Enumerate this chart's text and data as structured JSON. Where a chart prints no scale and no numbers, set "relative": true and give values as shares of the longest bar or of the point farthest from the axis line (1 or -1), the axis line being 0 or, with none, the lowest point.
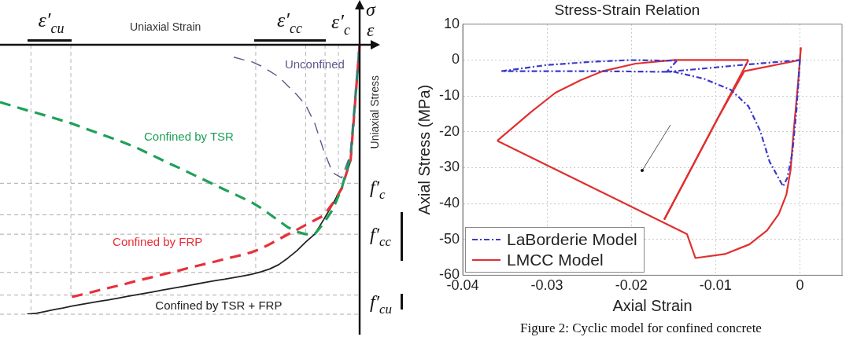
{
  "chart_data": [
    {
      "type": "line",
      "relative": true,
      "xlabel": "Uniaxial Strain",
      "ylabel": "Uniaxial Stress",
      "marker": "none",
      "legend": false,
      "categories": [
        null,
        null,
        null,
        null,
        null,
        null,
        null,
        null,
        null,
        null,
        null,
        null,
        null,
        null,
        null,
        null,
        null,
        null,
        null,
        null,
        null,
        null,
        null,
        null,
        null,
        null,
        null,
        null,
        null,
        null,
        null,
        null,
        null,
        null,
        null,
        null,
        null,
        null,
        null,
        null,
        null
      ],
      "series": [
        {
          "name": "Unconfined",
          "color": "#5a5a8c",
          "line_style": "dashed",
          "values": [
            null,
            null,
            null,
            null,
            null,
            null,
            null,
            null,
            null,
            null,
            null,
            null,
            null,
            null,
            null,
            null,
            null,
            null,
            null,
            null,
            null,
            null,
            null,
            null,
            null,
            null,
            -0.046,
            -0.055,
            -0.063,
            -0.078,
            -0.098,
            -0.119,
            -0.152,
            -0.185,
            -0.224,
            -0.291,
            -0.392,
            -0.475,
            -0.494,
            -0.404,
            0
          ]
        },
        {
          "name": "Confined by TSR",
          "color": "#1fa05a",
          "line_style": "dashed",
          "values": [
            -0.213,
            -0.223,
            -0.233,
            -0.243,
            -0.252,
            -0.262,
            -0.272,
            -0.282,
            -0.292,
            -0.305,
            -0.317,
            -0.329,
            -0.341,
            -0.353,
            -0.366,
            -0.379,
            -0.395,
            -0.411,
            -0.427,
            -0.443,
            -0.458,
            -0.474,
            -0.49,
            -0.506,
            -0.522,
            -0.538,
            -0.553,
            -0.569,
            -0.585,
            -0.605,
            -0.629,
            -0.653,
            -0.677,
            -0.694,
            -0.703,
            -0.703,
            -0.662,
            -0.612,
            -0.533,
            -0.411,
            0
          ]
        },
        {
          "name": "Confined by FRP",
          "color": "#e8303a",
          "line_style": "dashed",
          "values": [
            null,
            null,
            null,
            null,
            null,
            null,
            null,
            null,
            -0.936,
            -0.928,
            -0.92,
            -0.911,
            -0.903,
            -0.895,
            -0.887,
            -0.878,
            -0.87,
            -0.862,
            -0.853,
            -0.845,
            -0.837,
            -0.828,
            -0.82,
            -0.812,
            -0.804,
            -0.795,
            -0.787,
            -0.779,
            -0.77,
            -0.757,
            -0.74,
            -0.722,
            -0.704,
            -0.687,
            -0.669,
            -0.651,
            -0.634,
            -0.589,
            -0.534,
            -0.426,
            0
          ]
        },
        {
          "name": "Confined by TSR + FRP",
          "color": "#222222",
          "line_style": "solid",
          "values": [
            null,
            null,
            null,
            -1,
            -0.997,
            -0.99,
            -0.983,
            -0.977,
            -0.97,
            -0.964,
            -0.958,
            -0.952,
            -0.947,
            -0.941,
            -0.935,
            -0.929,
            -0.923,
            -0.917,
            -0.911,
            -0.905,
            -0.899,
            -0.893,
            -0.887,
            -0.881,
            -0.875,
            -0.87,
            -0.864,
            -0.858,
            -0.852,
            -0.843,
            -0.832,
            -0.816,
            -0.792,
            -0.765,
            -0.732,
            -0.703,
            -0.649,
            -0.592,
            -0.53,
            -0.431,
            0
          ]
        }
      ],
      "ref_lines": [
        {
          "axis": "y",
          "value": -0.514,
          "color": "#aaaaaa",
          "line_style": "dashed"
        },
        {
          "axis": "y",
          "value": -0.631,
          "color": "#aaaaaa",
          "line_style": "dashed"
        },
        {
          "axis": "y",
          "value": -0.703,
          "color": "#aaaaaa",
          "line_style": "dashed"
        },
        {
          "axis": "y",
          "value": -0.845,
          "color": "#aaaaaa",
          "line_style": "dashed"
        },
        {
          "axis": "y",
          "value": -0.929,
          "color": "#aaaaaa",
          "line_style": "dashed"
        },
        {
          "axis": "y",
          "value": -1,
          "color": "#aaaaaa",
          "line_style": "dashed"
        }
      ],
      "annotations": [
        "ε′$_{cu}$",
        "ε′$_{cc}$",
        "ε′$_{c}$",
        "σ",
        "ε",
        "f′$_{c}$",
        "f′$_{cc}$",
        "f′$_{cu}$"
      ]
    },
    {
      "type": "line",
      "title": "Stress-Strain Relation",
      "xlabel": "Axial Strain",
      "ylabel": "Axial Stress (MPa)",
      "marker": "none",
      "grid": true,
      "legend": "bottom left",
      "xlim": [
        -0.04,
        0.005
      ],
      "xticks": [
        -0.04,
        -0.03,
        -0.02,
        -0.01,
        0
      ],
      "ylim": [
        -60,
        10
      ],
      "yticks": [
        -60,
        -50,
        -40,
        -30,
        -20,
        -10,
        0,
        10
      ],
      "series": [
        {
          "name": "LaBorderie Model",
          "color": "#3a3acc",
          "line_style": "dashed",
          "x": [
            0,
            -0.0004,
            -0.0009,
            -0.0015,
            -0.002,
            -0.0036,
            -0.0047,
            -0.0061,
            -0.0082,
            -0.0114,
            -0.0149,
            -0.0241,
            -0.0354
          ],
          "values": [
            0,
            -13.8,
            -26,
            -32.9,
            -35.2,
            -28.3,
            -19.8,
            -12.9,
            -8.3,
            -5.2,
            -3.3,
            -3.1,
            -3.1
          ]
        },
        {
          "color": "#3a3acc",
          "line_style": "dashed",
          "x": [
            -0.0354,
            -0.0301,
            -0.0248,
            -0.0202,
            -0.0146
          ],
          "values": [
            -3.1,
            -1.4,
            -0.5,
            0,
            -0.2
          ]
        },
        {
          "color": "#3a3acc",
          "line_style": "dashed",
          "x": [
            -0.0146,
            -0.0158
          ],
          "values": [
            -0.2,
            -3.3
          ]
        },
        {
          "color": "#3a3acc",
          "line_style": "dashed",
          "x": [
            -0.0158,
            -0.0061,
            0
          ],
          "values": [
            -3.3,
            -1.2,
            0
          ]
        },
        {
          "name": "LMCC Model",
          "color": "#e03030",
          "line_style": "solid",
          "x": [
            0,
            0.0001
          ],
          "values": [
            0,
            3.5
          ]
        },
        {
          "color": "#e03030",
          "line_style": "solid",
          "x": [
            0.0001,
            0,
            -0.0002,
            -0.0008,
            -0.0011,
            -0.0016,
            -0.0025,
            -0.0039,
            -0.006,
            -0.0089,
            -0.0124,
            -0.0134,
            -0.0359
          ],
          "values": [
            3.5,
            0,
            -6,
            -21.4,
            -30.6,
            -37.5,
            -42.9,
            -47.5,
            -51.4,
            -54.1,
            -55.2,
            -48.5,
            -22.5
          ]
        },
        {
          "color": "#e03030",
          "line_style": "solid",
          "x": [
            -0.0359,
            -0.0319,
            -0.029,
            -0.026,
            -0.0234,
            -0.0195,
            -0.0149,
            -0.0061
          ],
          "values": [
            -22.5,
            -14.5,
            -9.1,
            -5.6,
            -3.1,
            -1,
            0,
            0
          ]
        },
        {
          "color": "#e03030",
          "line_style": "solid",
          "x": [
            -0.0061,
            -0.0161
          ],
          "values": [
            0,
            -44.5
          ]
        },
        {
          "color": "#e03030",
          "line_style": "solid",
          "x": [
            -0.0161,
            -0.0098,
            -0.0066,
            0
          ],
          "values": [
            -44.5,
            -16.5,
            -3.1,
            0
          ]
        }
      ],
      "annotations": [
        "Figure 2: Cyclic model for confined concrete"
      ]
    }
  ]
}
